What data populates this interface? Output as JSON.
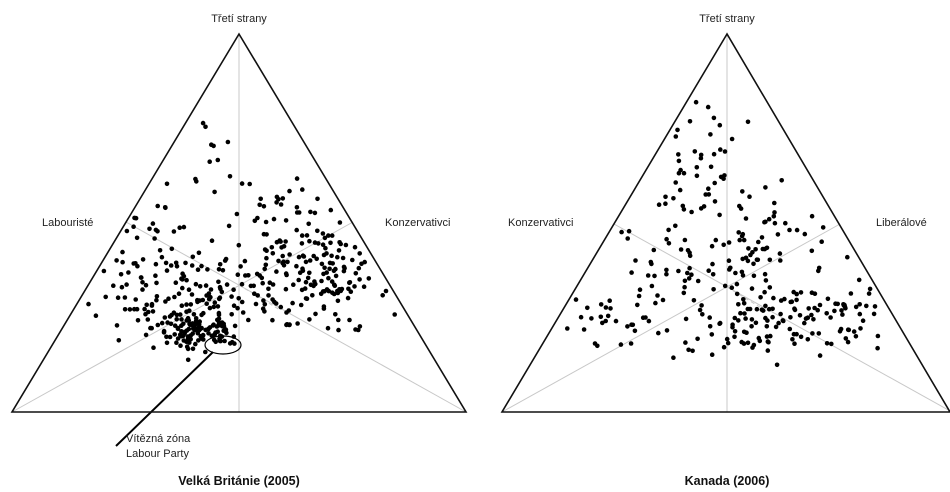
{
  "chart_data": [
    {
      "type": "scatter",
      "title": "Velká Británie (2005)",
      "axes": {
        "top": "Třetí strany",
        "left": "Labouristé",
        "right": "Konzervativci"
      },
      "annotation": {
        "line1": "Vítězná zóna",
        "line2": "Labour Party"
      },
      "clusters": [
        {
          "center": [
            0.4,
            0.68
          ],
          "spread": [
            0.14,
            0.06
          ],
          "count": 175
        },
        {
          "center": [
            0.7,
            0.62
          ],
          "spread": [
            0.07,
            0.07
          ],
          "count": 150
        },
        {
          "center": [
            0.41,
            0.78
          ],
          "spread": [
            0.05,
            0.025
          ],
          "count": 120
        },
        {
          "center": [
            0.32,
            0.5
          ],
          "spread": [
            0.05,
            0.07
          ],
          "count": 25
        },
        {
          "center": [
            0.59,
            0.52
          ],
          "spread": [
            0.05,
            0.06
          ],
          "count": 35
        },
        {
          "center": [
            0.43,
            0.33
          ],
          "spread": [
            0.035,
            0.08
          ],
          "count": 12
        }
      ]
    },
    {
      "type": "scatter",
      "title": "Kanada (2006)",
      "axes": {
        "top": "Třetí strany",
        "left": "Konzervativci",
        "right": "Liberálové"
      },
      "clusters": [
        {
          "center": [
            0.43,
            0.35
          ],
          "spread": [
            0.05,
            0.07
          ],
          "count": 45
        },
        {
          "center": [
            0.56,
            0.55
          ],
          "spread": [
            0.09,
            0.09
          ],
          "count": 80
        },
        {
          "center": [
            0.38,
            0.62
          ],
          "spread": [
            0.08,
            0.06
          ],
          "count": 30
        },
        {
          "center": [
            0.22,
            0.75
          ],
          "spread": [
            0.08,
            0.04
          ],
          "count": 35
        },
        {
          "center": [
            0.55,
            0.77
          ],
          "spread": [
            0.1,
            0.045
          ],
          "count": 95
        },
        {
          "center": [
            0.74,
            0.73
          ],
          "spread": [
            0.07,
            0.05
          ],
          "count": 50
        }
      ]
    }
  ]
}
